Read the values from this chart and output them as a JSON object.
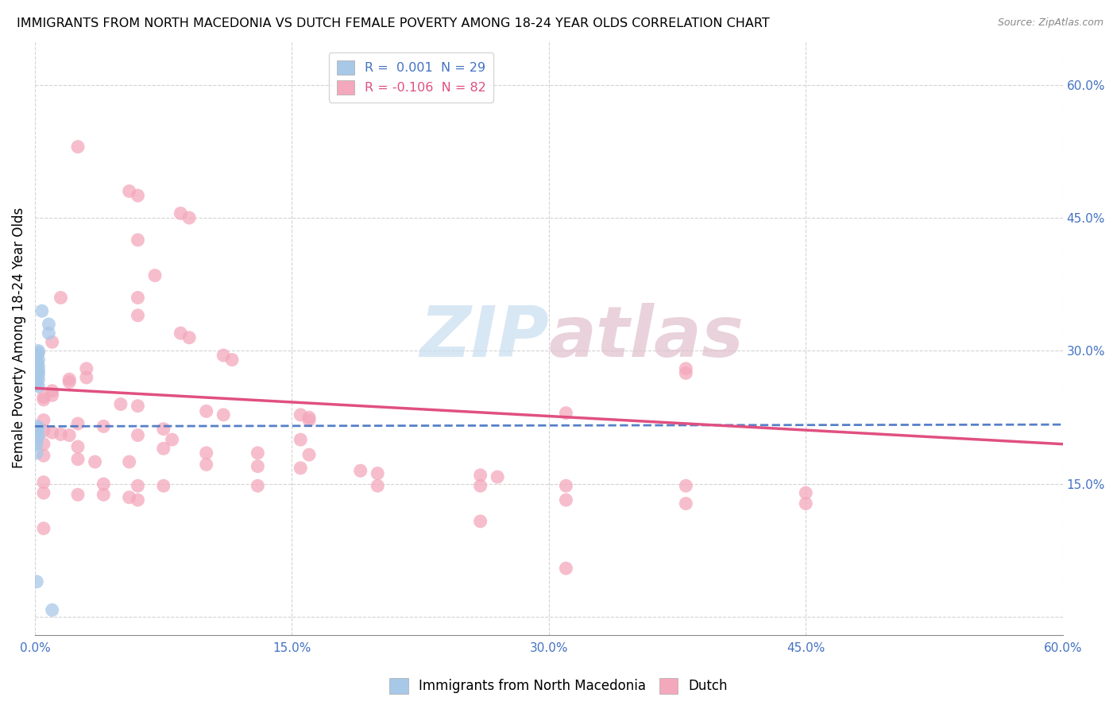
{
  "title": "IMMIGRANTS FROM NORTH MACEDONIA VS DUTCH FEMALE POVERTY AMONG 18-24 YEAR OLDS CORRELATION CHART",
  "source": "Source: ZipAtlas.com",
  "ylabel": "Female Poverty Among 18-24 Year Olds",
  "right_yticks": [
    "60.0%",
    "45.0%",
    "30.0%",
    "15.0%"
  ],
  "right_ytick_vals": [
    0.6,
    0.45,
    0.3,
    0.15
  ],
  "legend_label_blue": "R =  0.001  N = 29",
  "legend_label_pink": "R = -0.106  N = 82",
  "bottom_label_blue": "Immigrants from North Macedonia",
  "bottom_label_pink": "Dutch",
  "xlim": [
    0.0,
    0.6
  ],
  "ylim": [
    -0.02,
    0.65
  ],
  "watermark_zip": "ZIP",
  "watermark_atlas": "atlas",
  "blue_color": "#a8c8e8",
  "pink_color": "#f4a8bc",
  "blue_line_color": "#4472c4",
  "pink_line_color": "#e05080",
  "background_color": "#ffffff",
  "grid_color": "#c8c8c8",
  "blue_scatter": [
    [
      0.004,
      0.345
    ],
    [
      0.008,
      0.33
    ],
    [
      0.008,
      0.32
    ],
    [
      0.002,
      0.3
    ],
    [
      0.002,
      0.298
    ],
    [
      0.001,
      0.295
    ],
    [
      0.002,
      0.29
    ],
    [
      0.001,
      0.288
    ],
    [
      0.001,
      0.285
    ],
    [
      0.002,
      0.283
    ],
    [
      0.001,
      0.28
    ],
    [
      0.002,
      0.278
    ],
    [
      0.001,
      0.276
    ],
    [
      0.002,
      0.274
    ],
    [
      0.001,
      0.27
    ],
    [
      0.002,
      0.268
    ],
    [
      0.001,
      0.265
    ],
    [
      0.001,
      0.262
    ],
    [
      0.002,
      0.26
    ],
    [
      0.001,
      0.215
    ],
    [
      0.002,
      0.213
    ],
    [
      0.001,
      0.21
    ],
    [
      0.001,
      0.208
    ],
    [
      0.002,
      0.205
    ],
    [
      0.001,
      0.2
    ],
    [
      0.001,
      0.195
    ],
    [
      0.001,
      0.185
    ],
    [
      0.001,
      0.04
    ],
    [
      0.01,
      0.008
    ]
  ],
  "pink_scatter": [
    [
      0.025,
      0.53
    ],
    [
      0.055,
      0.48
    ],
    [
      0.06,
      0.475
    ],
    [
      0.085,
      0.455
    ],
    [
      0.09,
      0.45
    ],
    [
      0.06,
      0.425
    ],
    [
      0.07,
      0.385
    ],
    [
      0.06,
      0.36
    ],
    [
      0.015,
      0.36
    ],
    [
      0.06,
      0.34
    ],
    [
      0.085,
      0.32
    ],
    [
      0.09,
      0.315
    ],
    [
      0.01,
      0.31
    ],
    [
      0.11,
      0.295
    ],
    [
      0.115,
      0.29
    ],
    [
      0.03,
      0.28
    ],
    [
      0.03,
      0.27
    ],
    [
      0.02,
      0.268
    ],
    [
      0.02,
      0.265
    ],
    [
      0.01,
      0.25
    ],
    [
      0.01,
      0.255
    ],
    [
      0.005,
      0.248
    ],
    [
      0.005,
      0.245
    ],
    [
      0.05,
      0.24
    ],
    [
      0.06,
      0.238
    ],
    [
      0.1,
      0.232
    ],
    [
      0.11,
      0.228
    ],
    [
      0.155,
      0.228
    ],
    [
      0.16,
      0.225
    ],
    [
      0.16,
      0.222
    ],
    [
      0.005,
      0.222
    ],
    [
      0.025,
      0.218
    ],
    [
      0.04,
      0.215
    ],
    [
      0.075,
      0.212
    ],
    [
      0.005,
      0.21
    ],
    [
      0.01,
      0.208
    ],
    [
      0.015,
      0.206
    ],
    [
      0.02,
      0.205
    ],
    [
      0.06,
      0.205
    ],
    [
      0.08,
      0.2
    ],
    [
      0.155,
      0.2
    ],
    [
      0.005,
      0.195
    ],
    [
      0.025,
      0.192
    ],
    [
      0.075,
      0.19
    ],
    [
      0.1,
      0.185
    ],
    [
      0.13,
      0.185
    ],
    [
      0.16,
      0.183
    ],
    [
      0.005,
      0.182
    ],
    [
      0.025,
      0.178
    ],
    [
      0.035,
      0.175
    ],
    [
      0.055,
      0.175
    ],
    [
      0.1,
      0.172
    ],
    [
      0.13,
      0.17
    ],
    [
      0.155,
      0.168
    ],
    [
      0.19,
      0.165
    ],
    [
      0.2,
      0.162
    ],
    [
      0.26,
      0.16
    ],
    [
      0.27,
      0.158
    ],
    [
      0.005,
      0.152
    ],
    [
      0.04,
      0.15
    ],
    [
      0.06,
      0.148
    ],
    [
      0.075,
      0.148
    ],
    [
      0.13,
      0.148
    ],
    [
      0.2,
      0.148
    ],
    [
      0.26,
      0.148
    ],
    [
      0.31,
      0.148
    ],
    [
      0.38,
      0.148
    ],
    [
      0.31,
      0.23
    ],
    [
      0.38,
      0.275
    ],
    [
      0.38,
      0.28
    ],
    [
      0.005,
      0.14
    ],
    [
      0.025,
      0.138
    ],
    [
      0.04,
      0.138
    ],
    [
      0.055,
      0.135
    ],
    [
      0.06,
      0.132
    ],
    [
      0.31,
      0.132
    ],
    [
      0.38,
      0.128
    ],
    [
      0.45,
      0.14
    ],
    [
      0.45,
      0.128
    ],
    [
      0.005,
      0.1
    ],
    [
      0.26,
      0.108
    ],
    [
      0.31,
      0.055
    ]
  ],
  "blue_R": 0.001,
  "blue_N": 29,
  "pink_R": -0.106,
  "pink_N": 82,
  "blue_trend_y0": 0.215,
  "blue_trend_y1": 0.217,
  "pink_trend_y0": 0.258,
  "pink_trend_y1": 0.195
}
